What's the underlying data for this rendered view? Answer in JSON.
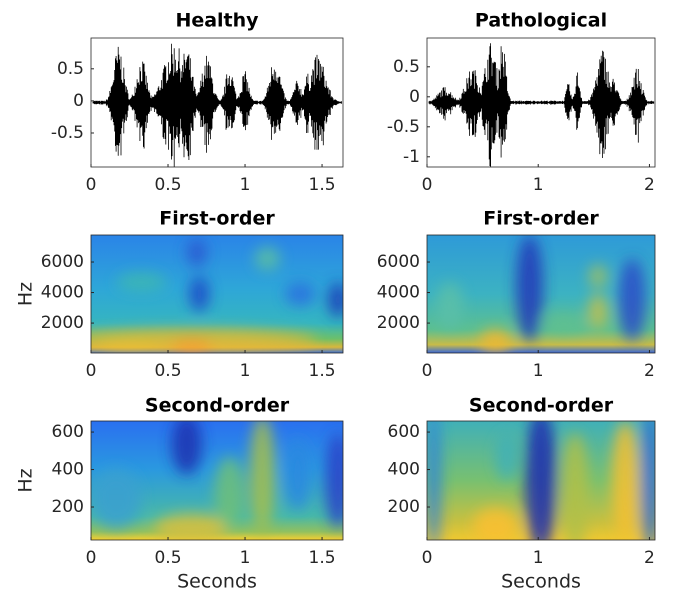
{
  "chart_data": [
    {
      "type": "waveform",
      "title": "Healthy",
      "xlim": [
        0,
        1.636
      ],
      "xticks": [
        0,
        0.5,
        1,
        1.5
      ],
      "ylim": [
        -1.03,
        0.98
      ],
      "yticks": [
        -0.5,
        0,
        0.5
      ]
    },
    {
      "type": "waveform",
      "title": "Pathological",
      "xlim": [
        0,
        2.05
      ],
      "xticks": [
        0,
        1,
        2
      ],
      "ylim": [
        -1.17,
        0.98
      ],
      "yticks": [
        -1,
        -0.5,
        0,
        0.5
      ]
    },
    {
      "type": "heatmap",
      "title": "First-order",
      "ylabel": "Hz",
      "xlim": [
        0,
        1.636
      ],
      "xticks": [
        0,
        0.5,
        1,
        1.5
      ],
      "ylim": [
        40,
        7770
      ],
      "yticks": [
        2000,
        4000,
        6000
      ]
    },
    {
      "type": "heatmap",
      "title": "First-order",
      "xlim": [
        0,
        2.05
      ],
      "xticks": [
        0,
        1,
        2
      ],
      "ylim": [
        40,
        7770
      ],
      "yticks": [
        2000,
        4000,
        6000
      ]
    },
    {
      "type": "heatmap",
      "title": "Second-order",
      "ylabel": "Hz",
      "xlabel": "Seconds",
      "xlim": [
        0,
        1.636
      ],
      "xticks": [
        0,
        0.5,
        1,
        1.5
      ],
      "ylim": [
        24,
        659
      ],
      "yticks": [
        200,
        400,
        600
      ]
    },
    {
      "type": "heatmap",
      "title": "Second-order",
      "xlabel": "Seconds",
      "xlim": [
        0,
        2.05
      ],
      "xticks": [
        0,
        1,
        2
      ],
      "ylim": [
        24,
        659
      ],
      "yticks": [
        200,
        400,
        600
      ]
    }
  ]
}
